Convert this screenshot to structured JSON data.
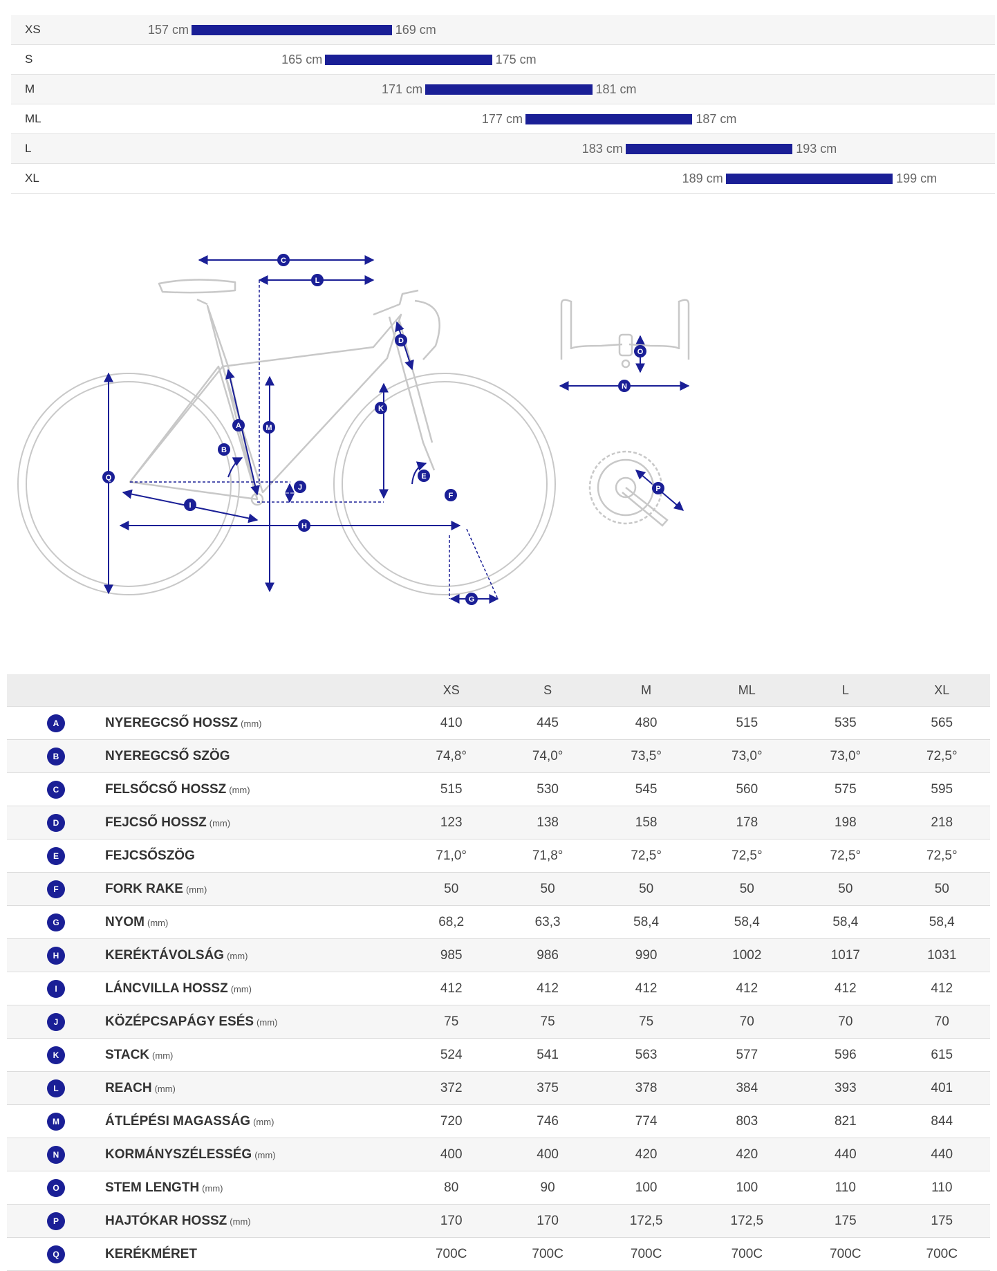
{
  "size_chart": {
    "axis_min": 150,
    "axis_max": 205,
    "rows": [
      {
        "size": "XS",
        "min": "157 cm",
        "max": "169 cm",
        "min_value": 157,
        "max_value": 169
      },
      {
        "size": "S",
        "min": "165 cm",
        "max": "175 cm",
        "min_value": 165,
        "max_value": 175
      },
      {
        "size": "M",
        "min": "171 cm",
        "max": "181 cm",
        "min_value": 171,
        "max_value": 181
      },
      {
        "size": "ML",
        "min": "177 cm",
        "max": "187 cm",
        "min_value": 177,
        "max_value": 187
      },
      {
        "size": "L",
        "min": "183 cm",
        "max": "193 cm",
        "min_value": 183,
        "max_value": 193
      },
      {
        "size": "XL",
        "min": "189 cm",
        "max": "199 cm",
        "min_value": 189,
        "max_value": 199
      }
    ]
  },
  "diagram": {
    "labels": [
      "A",
      "B",
      "C",
      "D",
      "E",
      "F",
      "G",
      "H",
      "I",
      "J",
      "K",
      "L",
      "M",
      "N",
      "O",
      "P",
      "Q"
    ],
    "colors": {
      "accent": "#1a1f96",
      "frame": "#c8c8c8"
    }
  },
  "chart_data": {
    "type": "table",
    "columns": [
      "XS",
      "S",
      "M",
      "ML",
      "L",
      "XL"
    ],
    "rows": [
      {
        "letter": "A",
        "name": "NYEREGCSŐ HOSSZ",
        "unit": "(mm)",
        "values": [
          "410",
          "445",
          "480",
          "515",
          "535",
          "565"
        ]
      },
      {
        "letter": "B",
        "name": "NYEREGCSŐ SZÖG",
        "unit": "",
        "values": [
          "74,8°",
          "74,0°",
          "73,5°",
          "73,0°",
          "73,0°",
          "72,5°"
        ]
      },
      {
        "letter": "C",
        "name": "FELSŐCSŐ HOSSZ",
        "unit": "(mm)",
        "values": [
          "515",
          "530",
          "545",
          "560",
          "575",
          "595"
        ]
      },
      {
        "letter": "D",
        "name": "FEJCSŐ HOSSZ",
        "unit": "(mm)",
        "values": [
          "123",
          "138",
          "158",
          "178",
          "198",
          "218"
        ]
      },
      {
        "letter": "E",
        "name": "FEJCSŐSZÖG",
        "unit": "",
        "values": [
          "71,0°",
          "71,8°",
          "72,5°",
          "72,5°",
          "72,5°",
          "72,5°"
        ]
      },
      {
        "letter": "F",
        "name": "FORK RAKE",
        "unit": "(mm)",
        "values": [
          "50",
          "50",
          "50",
          "50",
          "50",
          "50"
        ]
      },
      {
        "letter": "G",
        "name": "NYOM",
        "unit": "(mm)",
        "values": [
          "68,2",
          "63,3",
          "58,4",
          "58,4",
          "58,4",
          "58,4"
        ]
      },
      {
        "letter": "H",
        "name": "KERÉKTÁVOLSÁG",
        "unit": "(mm)",
        "values": [
          "985",
          "986",
          "990",
          "1002",
          "1017",
          "1031"
        ]
      },
      {
        "letter": "I",
        "name": "LÁNCVILLA HOSSZ",
        "unit": "(mm)",
        "values": [
          "412",
          "412",
          "412",
          "412",
          "412",
          "412"
        ]
      },
      {
        "letter": "J",
        "name": "KÖZÉPCSAPÁGY ESÉS",
        "unit": "(mm)",
        "values": [
          "75",
          "75",
          "75",
          "70",
          "70",
          "70"
        ]
      },
      {
        "letter": "K",
        "name": "STACK",
        "unit": "(mm)",
        "values": [
          "524",
          "541",
          "563",
          "577",
          "596",
          "615"
        ]
      },
      {
        "letter": "L",
        "name": "REACH",
        "unit": "(mm)",
        "values": [
          "372",
          "375",
          "378",
          "384",
          "393",
          "401"
        ]
      },
      {
        "letter": "M",
        "name": "ÁTLÉPÉSI MAGASSÁG",
        "unit": "(mm)",
        "values": [
          "720",
          "746",
          "774",
          "803",
          "821",
          "844"
        ]
      },
      {
        "letter": "N",
        "name": "KORMÁNYSZÉLESSÉG",
        "unit": "(mm)",
        "values": [
          "400",
          "400",
          "420",
          "420",
          "440",
          "440"
        ]
      },
      {
        "letter": "O",
        "name": "STEM LENGTH",
        "unit": "(mm)",
        "values": [
          "80",
          "90",
          "100",
          "100",
          "110",
          "110"
        ]
      },
      {
        "letter": "P",
        "name": "HAJTÓKAR HOSSZ",
        "unit": "(mm)",
        "values": [
          "170",
          "170",
          "172,5",
          "172,5",
          "175",
          "175"
        ]
      },
      {
        "letter": "Q",
        "name": "KERÉKMÉRET",
        "unit": "",
        "values": [
          "700C",
          "700C",
          "700C",
          "700C",
          "700C",
          "700C"
        ]
      }
    ]
  }
}
